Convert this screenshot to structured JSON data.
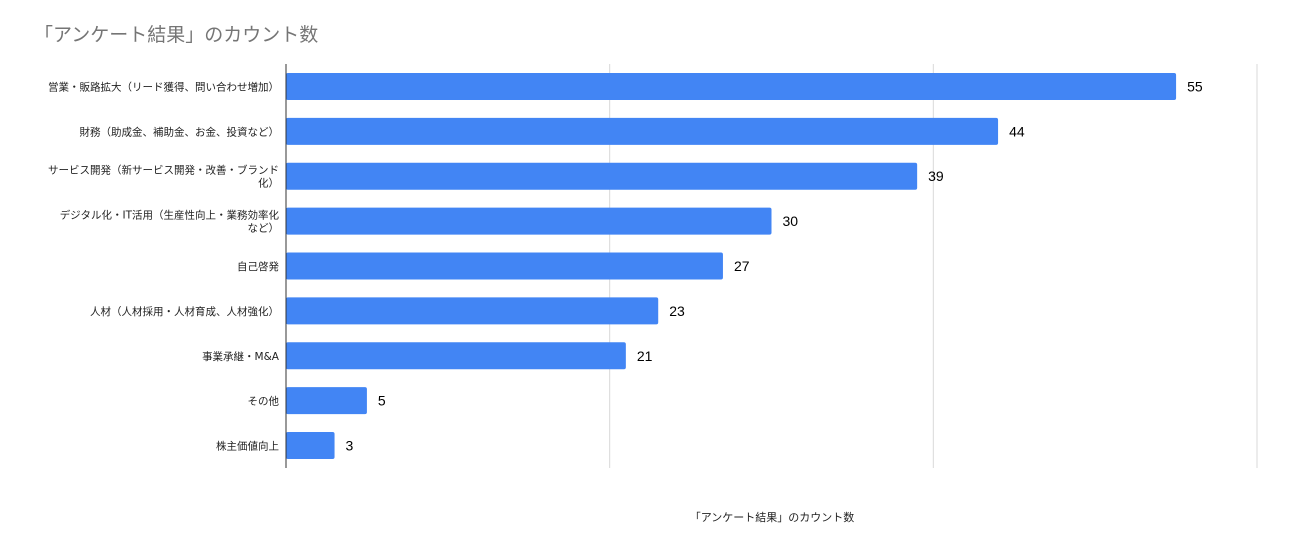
{
  "chart_data": {
    "type": "bar",
    "orientation": "horizontal",
    "title": "「アンケート結果」のカウント数",
    "xlabel": "「アンケート結果」のカウント数",
    "ylabel": "",
    "xlim": [
      0,
      60
    ],
    "grid": true,
    "legend": "none",
    "bar_color": "#4285f4",
    "categories": [
      "営業・販路拡大（リード獲得、問い合わせ増加）",
      "財務（助成金、補助金、お金、投資など）",
      "サービス開発（新サービス開発・改善・ブランド化）",
      "デジタル化・IT活用（生産性向上・業務効率化など）",
      "自己啓発",
      "人材（人材採用・人材育成、人材強化）",
      "事業承継・M&A",
      "その他",
      "株主価値向上"
    ],
    "category_lines": [
      [
        "営業・販路拡大（リード獲得、問い合わせ増加）"
      ],
      [
        "財務（助成金、補助金、お金、投資など）"
      ],
      [
        "サービス開発（新サービス開発・改善・ブランド",
        "化）"
      ],
      [
        "デジタル化・IT活用（生産性向上・業務効率化",
        "など）"
      ],
      [
        "自己啓発"
      ],
      [
        "人材（人材採用・人材育成、人材強化）"
      ],
      [
        "事業承継・M&A"
      ],
      [
        "その他"
      ],
      [
        "株主価値向上"
      ]
    ],
    "values": [
      55,
      44,
      39,
      30,
      27,
      23,
      21,
      5,
      3
    ]
  }
}
